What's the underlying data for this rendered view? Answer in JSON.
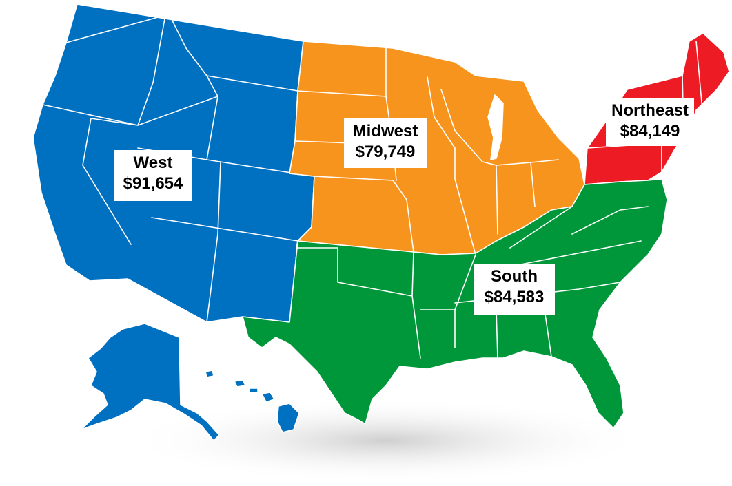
{
  "map": {
    "regions": [
      {
        "key": "west",
        "name": "West",
        "value": "$91,654",
        "color": "#0070C0"
      },
      {
        "key": "midwest",
        "name": "Midwest",
        "value": "$79,749",
        "color": "#F7941D"
      },
      {
        "key": "northeast",
        "name": "Northeast",
        "value": "$84,149",
        "color": "#ED1C24"
      },
      {
        "key": "south",
        "name": "South",
        "value": "$84,583",
        "color": "#00973A"
      }
    ],
    "shadow_color": "#d9d9d9"
  }
}
